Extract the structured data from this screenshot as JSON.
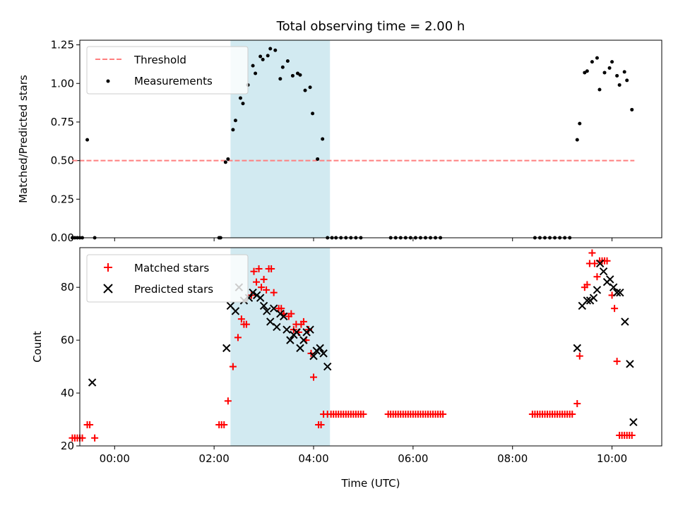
{
  "chart_data": [
    {
      "type": "scatter",
      "title": "Total observing time = 2.00 h",
      "ylabel": "Matched/Predicted stars",
      "xlabel": "",
      "xlim": [
        -0.7,
        11.0
      ],
      "ylim": [
        0.0,
        1.28
      ],
      "yticks": [
        0.0,
        0.25,
        0.5,
        0.75,
        1.0,
        1.25
      ],
      "ytick_labels": [
        "0.00",
        "0.25",
        "0.50",
        "0.75",
        "1.00",
        "1.25"
      ],
      "xticks": [
        0,
        2,
        4,
        6,
        8,
        10
      ],
      "shaded_interval": [
        2.33,
        4.33
      ],
      "shade_color": "#add8e6",
      "legend_position": "upper-left",
      "series": [
        {
          "name": "Threshold",
          "style": "dashed-line",
          "color": "#ff7f7f",
          "x": [
            -0.85,
            10.45
          ],
          "y": [
            0.5,
            0.5
          ]
        },
        {
          "name": "Measurements",
          "style": "dot",
          "color": "#000000",
          "x": [
            -0.85,
            -0.8,
            -0.75,
            -0.7,
            -0.65,
            -0.55,
            -0.4,
            2.1,
            2.13,
            2.23,
            2.28,
            2.38,
            2.43,
            2.53,
            2.58,
            2.68,
            2.78,
            2.83,
            2.93,
            2.98,
            3.08,
            3.13,
            3.23,
            3.33,
            3.38,
            3.48,
            3.58,
            3.68,
            3.73,
            3.83,
            3.93,
            3.98,
            4.08,
            4.18,
            4.28,
            4.37,
            4.45,
            4.55,
            4.65,
            4.75,
            4.85,
            4.95,
            5.55,
            5.65,
            5.75,
            5.85,
            5.95,
            6.05,
            6.15,
            6.25,
            6.35,
            6.45,
            6.55,
            8.45,
            8.55,
            8.65,
            8.75,
            8.85,
            8.95,
            9.05,
            9.15,
            9.3,
            9.35,
            9.45,
            9.5,
            9.6,
            9.7,
            9.75,
            9.85,
            9.95,
            10.0,
            10.1,
            10.15,
            10.25,
            10.3,
            10.4
          ],
          "y": [
            0,
            0,
            0,
            0,
            0,
            0.635,
            0,
            0,
            0,
            0.49,
            0.51,
            0.7,
            0.76,
            0.905,
            0.87,
            0.99,
            1.115,
            1.065,
            1.175,
            1.155,
            1.18,
            1.225,
            1.215,
            1.03,
            1.105,
            1.145,
            1.05,
            1.065,
            1.055,
            0.955,
            0.975,
            0.805,
            0.51,
            0.64,
            0,
            0,
            0,
            0,
            0,
            0,
            0,
            0,
            0,
            0,
            0,
            0,
            0,
            0,
            0,
            0,
            0,
            0,
            0,
            0,
            0,
            0,
            0,
            0,
            0,
            0,
            0,
            0.635,
            0.74,
            1.07,
            1.08,
            1.14,
            1.165,
            0.96,
            1.07,
            1.1,
            1.14,
            1.05,
            0.99,
            1.075,
            1.02,
            0.83
          ]
        }
      ]
    },
    {
      "type": "scatter",
      "title": "",
      "ylabel": "Count",
      "xlabel": "Time (UTC)",
      "xlim": [
        -0.7,
        11.0
      ],
      "ylim": [
        20,
        95
      ],
      "yticks": [
        20,
        40,
        60,
        80
      ],
      "ytick_labels": [
        "20",
        "40",
        "60",
        "80"
      ],
      "xticks": [
        0,
        2,
        4,
        6,
        8,
        10
      ],
      "xtick_labels": [
        "00:00",
        "02:00",
        "04:00",
        "06:00",
        "08:00",
        "10:00"
      ],
      "shaded_interval": [
        2.33,
        4.33
      ],
      "shade_color": "#add8e6",
      "legend_position": "upper-left",
      "series": [
        {
          "name": "Matched stars",
          "style": "plus",
          "color": "#ff0000",
          "x": [
            -0.85,
            -0.8,
            -0.75,
            -0.7,
            -0.65,
            -0.55,
            -0.5,
            -0.4,
            2.1,
            2.15,
            2.2,
            2.28,
            2.38,
            2.48,
            2.55,
            2.6,
            2.65,
            2.75,
            2.8,
            2.85,
            2.9,
            2.95,
            3.0,
            3.05,
            3.1,
            3.15,
            3.2,
            3.3,
            3.35,
            3.4,
            3.5,
            3.55,
            3.6,
            3.65,
            3.7,
            3.75,
            3.8,
            3.85,
            3.9,
            3.95,
            4.0,
            4.1,
            4.15,
            4.2,
            4.28,
            4.35,
            4.4,
            4.45,
            4.5,
            4.55,
            4.6,
            4.65,
            4.7,
            4.75,
            4.8,
            4.85,
            4.9,
            4.95,
            5.0,
            5.5,
            5.55,
            5.6,
            5.65,
            5.7,
            5.75,
            5.8,
            5.85,
            5.9,
            5.95,
            6.0,
            6.05,
            6.1,
            6.15,
            6.2,
            6.25,
            6.3,
            6.35,
            6.4,
            6.45,
            6.5,
            6.55,
            6.6,
            8.4,
            8.45,
            8.5,
            8.55,
            8.6,
            8.65,
            8.7,
            8.75,
            8.8,
            8.85,
            8.9,
            8.95,
            9.0,
            9.05,
            9.1,
            9.15,
            9.2,
            9.3,
            9.35,
            9.45,
            9.5,
            9.55,
            9.6,
            9.65,
            9.7,
            9.75,
            9.8,
            9.85,
            9.9,
            10.0,
            10.05,
            10.1,
            10.15,
            10.2,
            10.25,
            10.3,
            10.35,
            10.4
          ],
          "y": [
            23,
            23,
            23,
            23,
            23,
            28,
            28,
            23,
            28,
            28,
            28,
            37,
            50,
            61,
            68,
            66,
            66,
            77,
            86,
            82,
            87,
            80,
            83,
            79,
            87,
            87,
            78,
            72,
            72,
            70,
            69,
            70,
            64,
            66,
            63,
            66,
            67,
            60,
            64,
            55,
            46,
            28,
            28,
            32,
            32,
            32,
            32,
            32,
            32,
            32,
            32,
            32,
            32,
            32,
            32,
            32,
            32,
            32,
            32,
            32,
            32,
            32,
            32,
            32,
            32,
            32,
            32,
            32,
            32,
            32,
            32,
            32,
            32,
            32,
            32,
            32,
            32,
            32,
            32,
            32,
            32,
            32,
            32,
            32,
            32,
            32,
            32,
            32,
            32,
            32,
            32,
            32,
            32,
            32,
            32,
            32,
            32,
            32,
            32,
            36,
            54,
            80,
            81,
            89,
            93,
            89,
            84,
            90,
            90,
            90,
            90,
            77,
            72,
            52,
            24,
            24,
            24,
            24,
            24,
            24
          ]
        },
        {
          "name": "Predicted stars",
          "style": "x",
          "color": "#000000",
          "x": [
            -0.45,
            2.25,
            2.33,
            2.43,
            2.5,
            2.6,
            2.7,
            2.78,
            2.86,
            2.93,
            3.0,
            3.06,
            3.13,
            3.2,
            3.26,
            3.33,
            3.4,
            3.46,
            3.53,
            3.6,
            3.66,
            3.73,
            3.8,
            3.86,
            3.93,
            4.0,
            4.06,
            4.13,
            4.2,
            4.28,
            9.3,
            9.4,
            9.5,
            9.56,
            9.63,
            9.7,
            9.76,
            9.83,
            9.9,
            9.96,
            10.03,
            10.1,
            10.16,
            10.26,
            10.36,
            10.43
          ],
          "y": [
            44,
            57,
            73,
            71,
            80,
            75,
            76,
            78,
            77,
            76,
            73,
            71,
            67,
            72,
            65,
            70,
            69,
            64,
            60,
            62,
            63,
            57,
            60,
            63,
            64,
            54,
            56,
            57,
            55,
            50,
            57,
            73,
            75,
            75,
            76,
            79,
            89,
            86,
            82,
            83,
            80,
            78,
            78,
            67,
            51,
            29
          ]
        }
      ]
    }
  ]
}
